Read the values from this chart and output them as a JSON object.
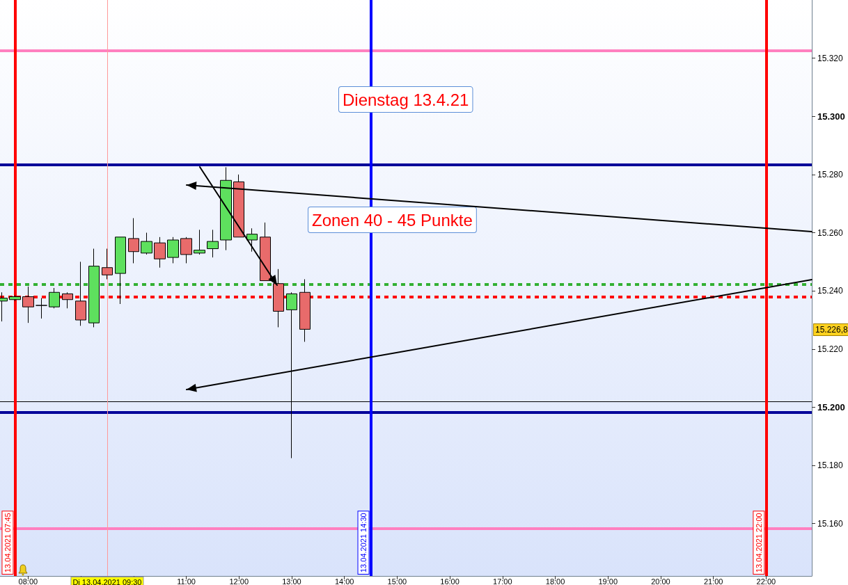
{
  "chart_data": {
    "type": "candlestick",
    "x": [
      "2021-04-13T07:30",
      "2021-04-13T07:45",
      "2021-04-13T08:00",
      "2021-04-13T08:15",
      "2021-04-13T08:30",
      "2021-04-13T08:45",
      "2021-04-13T09:00",
      "2021-04-13T09:15",
      "2021-04-13T09:30",
      "2021-04-13T09:45",
      "2021-04-13T10:00",
      "2021-04-13T10:15",
      "2021-04-13T10:30",
      "2021-04-13T10:45",
      "2021-04-13T11:00",
      "2021-04-13T11:15",
      "2021-04-13T11:30",
      "2021-04-13T11:45",
      "2021-04-13T12:00",
      "2021-04-13T12:15",
      "2021-04-13T12:30",
      "2021-04-13T12:45",
      "2021-04-13T13:00",
      "2021-04-13T13:15"
    ],
    "ohlc": [
      [
        15236.5,
        15239.5,
        15229.5,
        15237.5
      ],
      [
        15237,
        15238.5,
        15236.5,
        15238
      ],
      [
        15238,
        15241.5,
        15229,
        15234.5
      ],
      [
        15235,
        15237.5,
        15230.5,
        15235
      ],
      [
        15234.5,
        15241,
        15234,
        15239.5
      ],
      [
        15239,
        15239.5,
        15234,
        15237
      ],
      [
        15236.5,
        15250,
        15228,
        15230
      ],
      [
        15229,
        15254.5,
        15227.5,
        15248.5
      ],
      [
        15248,
        15254.5,
        15244,
        15245.5
      ],
      [
        15246,
        15258.5,
        15235.5,
        15258.5
      ],
      [
        15258,
        15265,
        15249.5,
        15253.5
      ],
      [
        15253,
        15260,
        15252.5,
        15257
      ],
      [
        15256.5,
        15258.5,
        15248,
        15251
      ],
      [
        15251.5,
        15258.5,
        15249.5,
        15257.5
      ],
      [
        15258,
        15258.5,
        15249.5,
        15252.5
      ],
      [
        15253,
        15261,
        15252.5,
        15254
      ],
      [
        15254.5,
        15261,
        15251.5,
        15257
      ],
      [
        15257.5,
        15282.5,
        15254,
        15278
      ],
      [
        15277.5,
        15280,
        15258.5,
        15258.5
      ],
      [
        15257.5,
        15261.5,
        15253.5,
        15259.5
      ],
      [
        15258.5,
        15263.5,
        15243.5,
        15243.5
      ],
      [
        15242.5,
        15247.5,
        15227.5,
        15233
      ],
      [
        15233.5,
        15239.5,
        15182.5,
        15239
      ],
      [
        15239.5,
        15244,
        15222.5,
        15226.8
      ]
    ],
    "colors": [
      "#5ee05e",
      "#5ee05e",
      "#e86b6b",
      "#000000",
      "#5ee05e",
      "#e86b6b",
      "#e86b6b",
      "#5ee05e",
      "#e86b6b",
      "#5ee05e",
      "#e86b6b",
      "#5ee05e",
      "#e86b6b",
      "#5ee05e",
      "#e86b6b",
      "#5ee05e",
      "#5ee05e",
      "#5ee05e",
      "#e86b6b",
      "#5ee05e",
      "#e86b6b",
      "#e86b6b",
      "#5ee05e",
      "#e86b6b"
    ],
    "xlim": [
      "2021-04-13T07:28",
      "2021-04-13T22:52"
    ],
    "xticks": [
      {
        "value": "2021-04-13T08:00",
        "label": "08:00"
      },
      {
        "value": "2021-04-13T09:00",
        "label": null
      },
      {
        "value": "2021-04-13T10:00",
        "label": null
      },
      {
        "value": "2021-04-13T11:00",
        "label": "11:00"
      },
      {
        "value": "2021-04-13T12:00",
        "label": "12:00"
      },
      {
        "value": "2021-04-13T13:00",
        "label": "13:00"
      },
      {
        "value": "2021-04-13T14:00",
        "label": "14:00"
      },
      {
        "value": "2021-04-13T15:00",
        "label": "15:00"
      },
      {
        "value": "2021-04-13T16:00",
        "label": "16:00"
      },
      {
        "value": "2021-04-13T17:00",
        "label": "17:00"
      },
      {
        "value": "2021-04-13T18:00",
        "label": "18:00"
      },
      {
        "value": "2021-04-13T19:00",
        "label": "19:00"
      },
      {
        "value": "2021-04-13T20:00",
        "label": "20:00"
      },
      {
        "value": "2021-04-13T21:00",
        "label": "21:00"
      },
      {
        "value": "2021-04-13T22:00",
        "label": "22:00"
      }
    ],
    "ylim": [
      15142,
      15340
    ],
    "yticks": [
      {
        "value": 15160,
        "label": "15.160"
      },
      {
        "value": 15180,
        "label": "15.180"
      },
      {
        "value": 15200,
        "label": "15.200"
      },
      {
        "value": 15220,
        "label": "15.220"
      },
      {
        "value": 15240,
        "label": "15.240"
      },
      {
        "value": 15260,
        "label": "15.260"
      },
      {
        "value": 15280,
        "label": "15.280"
      },
      {
        "value": 15300,
        "label": "15.300"
      },
      {
        "value": 15320,
        "label": "15.320"
      }
    ],
    "ref_lines": [
      {
        "axis": "y",
        "value": 15322.5,
        "color": "#ff80c0"
      },
      {
        "axis": "y",
        "value": 15283.3,
        "color": "#000099"
      },
      {
        "axis": "y",
        "value": 15242.3,
        "color": "#33b033",
        "line_style": "dashed"
      },
      {
        "axis": "y",
        "value": 15238,
        "color": "#ff0000",
        "line_style": "dashed"
      },
      {
        "axis": "y",
        "value": 15198.3,
        "color": "#000099"
      },
      {
        "axis": "y",
        "value": 15158.4,
        "color": "#ff80c0"
      },
      {
        "axis": "y",
        "value": 15202,
        "color": "#000000",
        "line_style": "solid"
      },
      {
        "axis": "x",
        "value": "2021-04-13T09:30",
        "color": "#ff9999",
        "line_style": "solid",
        "label": "Di 13.04.2021 09:30"
      },
      {
        "axis": "x",
        "value": "2021-04-13T07:45",
        "color": "#ff0000",
        "label": "13.04.2021 07:45"
      },
      {
        "axis": "x",
        "value": "2021-04-13T14:30",
        "color": "#0000ff",
        "label": "13.04.2021 14:30"
      },
      {
        "axis": "x",
        "value": "2021-04-13T22:00",
        "color": "#ff0000",
        "label": "13.04.2021 22:00"
      }
    ],
    "annotations": [
      "Dienstag 13.4.21",
      "Zonen 40 - 45 Punkte",
      "15.226,8"
    ],
    "grid": false
  }
}
